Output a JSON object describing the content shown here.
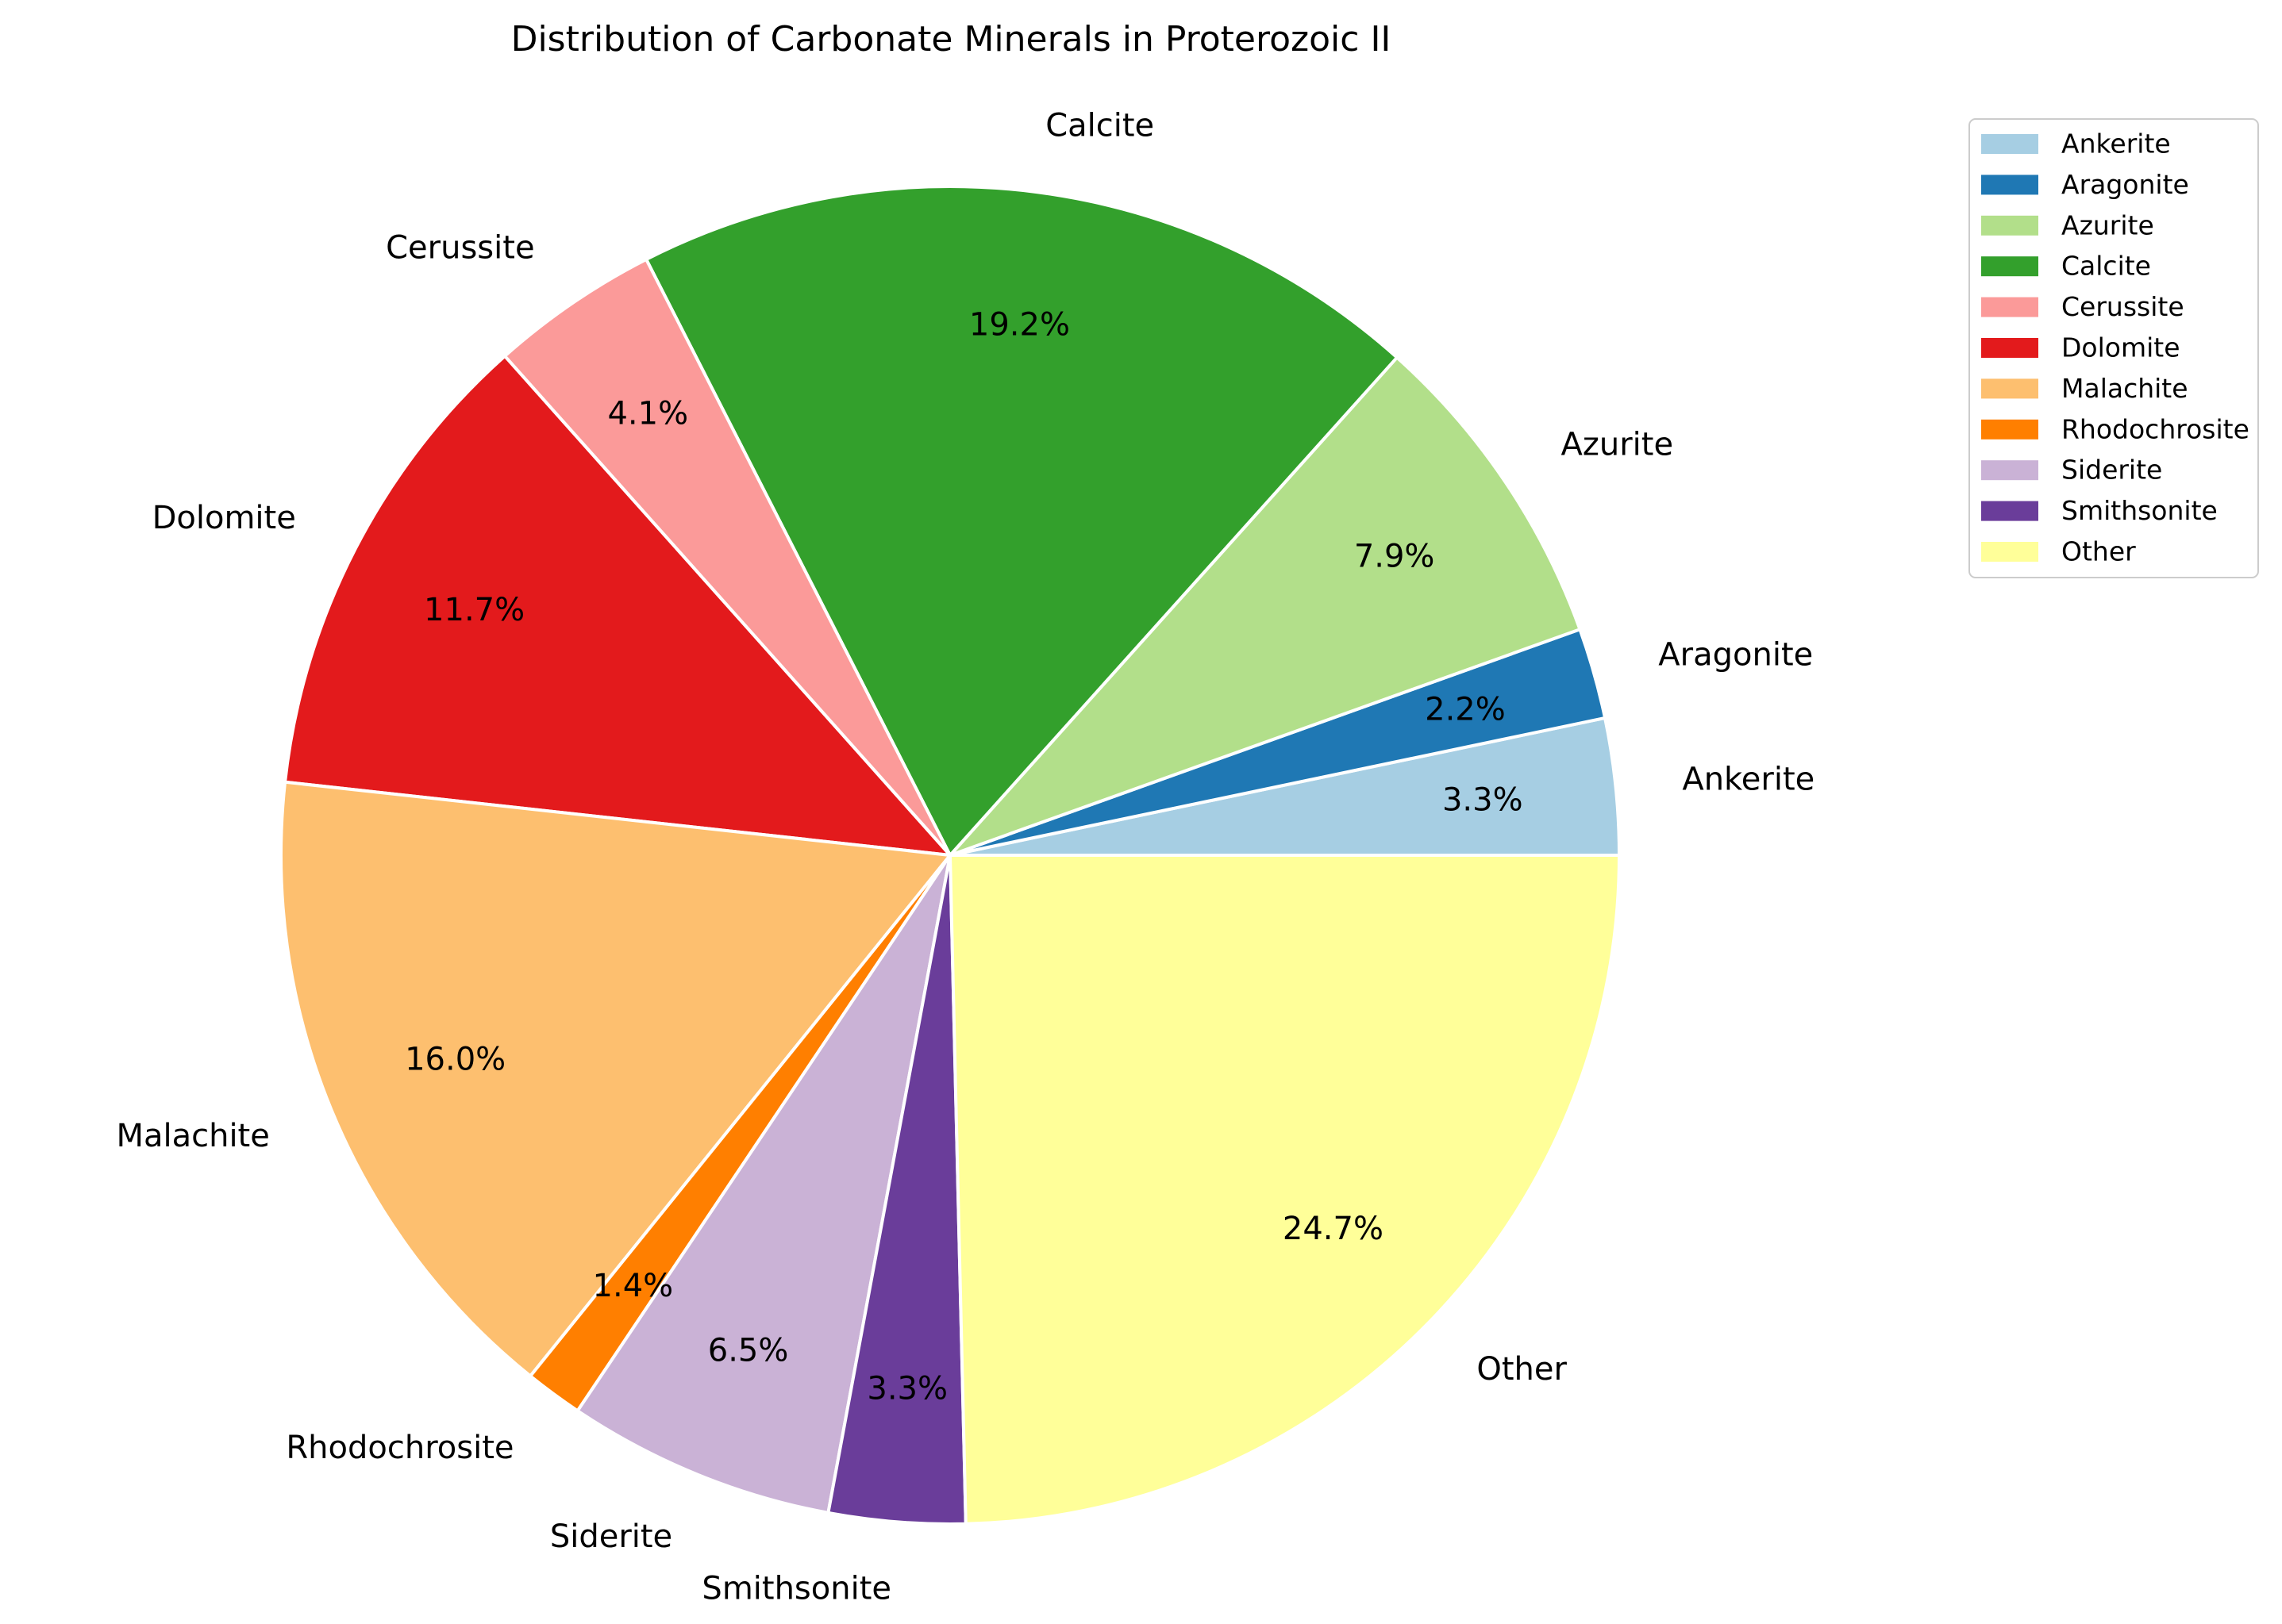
{
  "chart_data": {
    "type": "pie",
    "title": "Distribution of Carbonate Minerals in Proterozoic II",
    "start_angle_deg": 0,
    "direction": "counterclockwise",
    "autopct_format": "%.1f%%",
    "legend_position": "top-right",
    "slices": [
      {
        "label": "Ankerite",
        "value": 3.3,
        "pct_label": "3.3%",
        "color": "#a6cee3"
      },
      {
        "label": "Aragonite",
        "value": 2.2,
        "pct_label": "2.2%",
        "color": "#1f78b4"
      },
      {
        "label": "Azurite",
        "value": 7.9,
        "pct_label": "7.9%",
        "color": "#b2df8a"
      },
      {
        "label": "Calcite",
        "value": 19.2,
        "pct_label": "19.2%",
        "color": "#33a02c"
      },
      {
        "label": "Cerussite",
        "value": 4.1,
        "pct_label": "4.1%",
        "color": "#fb9a99"
      },
      {
        "label": "Dolomite",
        "value": 11.7,
        "pct_label": "11.7%",
        "color": "#e31a1c"
      },
      {
        "label": "Malachite",
        "value": 16.0,
        "pct_label": "16.0%",
        "color": "#fdbf6f"
      },
      {
        "label": "Rhodochrosite",
        "value": 1.4,
        "pct_label": "1.4%",
        "color": "#ff7f00"
      },
      {
        "label": "Siderite",
        "value": 6.5,
        "pct_label": "6.5%",
        "color": "#cab2d6"
      },
      {
        "label": "Smithsonite",
        "value": 3.3,
        "pct_label": "3.3%",
        "color": "#6a3d9a"
      },
      {
        "label": "Other",
        "value": 24.7,
        "pct_label": "24.7%",
        "color": "#ffff99"
      }
    ]
  }
}
